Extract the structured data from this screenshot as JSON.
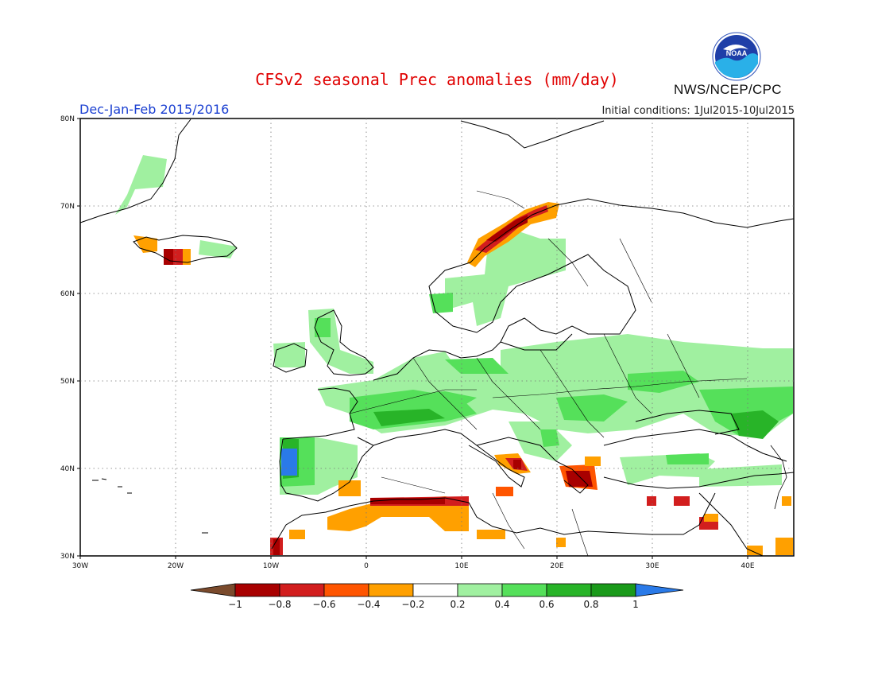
{
  "header": {
    "title": "CFSv2 seasonal Prec anomalies (mm/day)",
    "season": "Dec-Jan-Feb 2015/2016",
    "initial_conditions": "Initial conditions: 1Jul2015-10Jul2015",
    "agency": "NWS/NCEP/CPC",
    "logo_text": "NOAA"
  },
  "map": {
    "lon_range": [
      -30,
      45
    ],
    "lat_range": [
      30,
      80
    ],
    "lat_labels": [
      "80N",
      "70N",
      "60N",
      "50N",
      "40N",
      "30N"
    ],
    "lon_labels": [
      "30W",
      "20W",
      "10W",
      "0",
      "10E",
      "20E",
      "30E",
      "40E"
    ],
    "grid": "dotted"
  },
  "legend": {
    "tick_labels": [
      "-1",
      "-0.8",
      "-0.6",
      "-0.4",
      "-0.2",
      "0.2",
      "0.4",
      "0.6",
      "0.8",
      "1"
    ],
    "colors": [
      "#7a4a2c",
      "#a80000",
      "#d21e1e",
      "#ff5500",
      "#ffa000",
      "#ffffff",
      "#a0f0a0",
      "#55e05a",
      "#28b428",
      "#1a9a1a",
      "#2a7ae8"
    ]
  }
}
